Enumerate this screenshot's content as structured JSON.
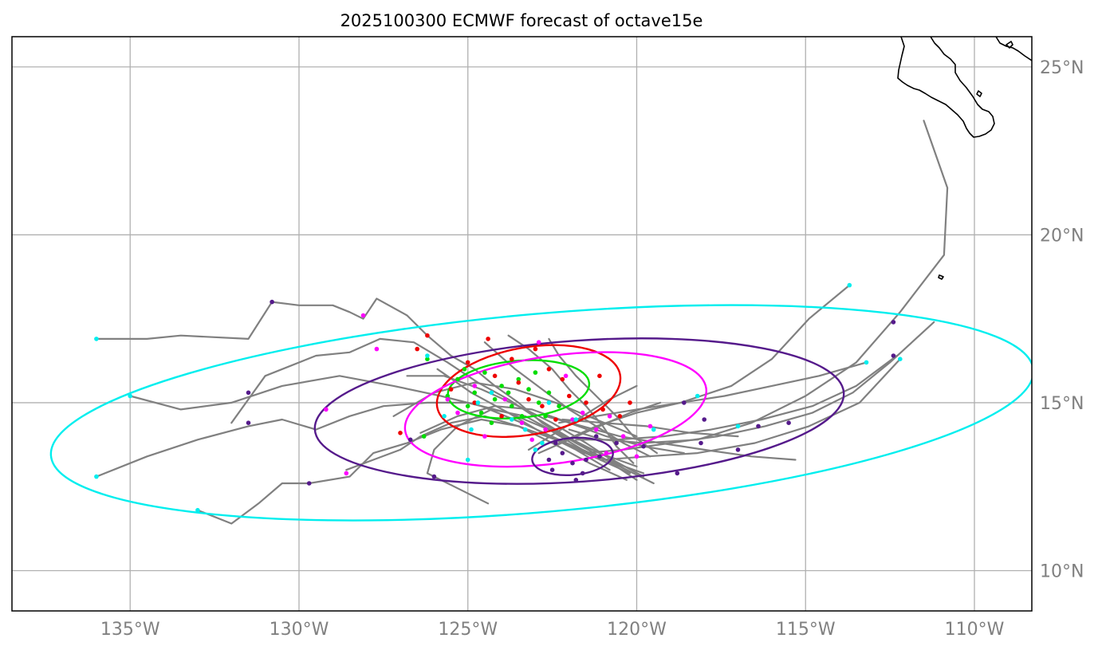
{
  "title": "2025100300 ECMWF forecast of octave15e",
  "map": {
    "extent": {
      "lon_min": -138.5,
      "lon_max": -108.3,
      "lat_min": 8.8,
      "lat_max": 25.9
    },
    "lon_ticks": [
      {
        "lon": -135,
        "label": "135°W"
      },
      {
        "lon": -130,
        "label": "130°W"
      },
      {
        "lon": -125,
        "label": "125°W"
      },
      {
        "lon": -120,
        "label": "120°W"
      },
      {
        "lon": -115,
        "label": "115°W"
      },
      {
        "lon": -110,
        "label": "110°W"
      }
    ],
    "lat_ticks": [
      {
        "lat": 10,
        "label": "10°N"
      },
      {
        "lat": 15,
        "label": "15°N"
      },
      {
        "lat": 20,
        "label": "20°N"
      },
      {
        "lat": 25,
        "label": "25°N"
      }
    ]
  },
  "colors": {
    "track": "#808080",
    "day1": "#00dd00",
    "day2": "#ee0000",
    "day3": "#ff00ff",
    "day4": "#551a8b",
    "day5": "#00eeee",
    "grid": "#b0b0b0",
    "coast": "#000000"
  },
  "uncertainty_ellipses": [
    {
      "name": "day1-ellipse",
      "color_key": "day1",
      "center": [
        -123.5,
        15.4
      ],
      "semi_lon": 2.1,
      "semi_lat": 0.85,
      "angle": -5
    },
    {
      "name": "day2-ellipse",
      "color_key": "day2",
      "center": [
        -123.2,
        15.35
      ],
      "semi_lon": 2.75,
      "semi_lat": 1.3,
      "angle": -10
    },
    {
      "name": "day3-ellipse",
      "color_key": "day3",
      "center": [
        -122.4,
        14.8
      ],
      "semi_lon": 4.5,
      "semi_lat": 1.6,
      "angle": -8
    },
    {
      "name": "day4-ellipse",
      "color_key": "day4",
      "center": [
        -121.7,
        14.75
      ],
      "semi_lon": 7.85,
      "semi_lat": 2.1,
      "angle": -4
    },
    {
      "name": "day5-ellipse",
      "color_key": "day5",
      "center": [
        -122.8,
        14.7
      ],
      "semi_lon": 14.6,
      "semi_lat": 2.95,
      "angle": -5
    },
    {
      "name": "day4-inner-ellipse",
      "color_key": "day4",
      "center": [
        -121.9,
        13.4
      ],
      "semi_lon": 1.2,
      "semi_lat": 0.55,
      "angle": -5
    }
  ],
  "tracks": [
    [
      [
        -136,
        16.9
      ],
      [
        -134.5,
        16.9
      ],
      [
        -133.5,
        17.0
      ],
      [
        -131.5,
        16.9
      ],
      [
        -130.8,
        18.0
      ],
      [
        -130,
        17.9
      ],
      [
        -129,
        17.9
      ],
      [
        -128.5,
        17.7
      ],
      [
        -128.1,
        17.5
      ],
      [
        -127.7,
        18.1
      ],
      [
        -126.8,
        17.6
      ],
      [
        -126.2,
        17.0
      ],
      [
        -125.5,
        16.4
      ],
      [
        -124.8,
        16.0
      ],
      [
        -124.2,
        15.5
      ],
      [
        -123.5,
        15.0
      ],
      [
        -122.8,
        14.4
      ],
      [
        -121.8,
        13.8
      ],
      [
        -120.9,
        13.3
      ],
      [
        -120.0,
        12.7
      ]
    ],
    [
      [
        -135,
        15.2
      ],
      [
        -133.5,
        14.8
      ],
      [
        -132.0,
        15.0
      ],
      [
        -130.5,
        15.5
      ],
      [
        -128.8,
        15.8
      ],
      [
        -127.2,
        15.5
      ],
      [
        -125.8,
        15.2
      ],
      [
        -124.6,
        14.9
      ],
      [
        -123.4,
        14.4
      ],
      [
        -122.3,
        13.9
      ],
      [
        -121.2,
        13.4
      ],
      [
        -119.8,
        12.9
      ]
    ],
    [
      [
        -136,
        12.8
      ],
      [
        -134.5,
        13.4
      ],
      [
        -133,
        13.9
      ],
      [
        -131.5,
        14.3
      ],
      [
        -130.5,
        14.5
      ],
      [
        -129.5,
        14.2
      ],
      [
        -128.5,
        14.6
      ],
      [
        -127.5,
        14.9
      ],
      [
        -126.2,
        15.0
      ],
      [
        -125.0,
        15.0
      ],
      [
        -123.8,
        14.7
      ],
      [
        -122.6,
        14.2
      ],
      [
        -121.6,
        13.6
      ],
      [
        -120.5,
        13.1
      ],
      [
        -119.5,
        12.6
      ]
    ],
    [
      [
        -133,
        11.8
      ],
      [
        -132,
        11.4
      ],
      [
        -131.2,
        12.0
      ],
      [
        -130.5,
        12.6
      ],
      [
        -129.7,
        12.6
      ],
      [
        -128.5,
        12.8
      ],
      [
        -127.8,
        13.5
      ],
      [
        -126.8,
        13.8
      ],
      [
        -125.8,
        14.2
      ],
      [
        -124.6,
        14.5
      ],
      [
        -123.5,
        14.3
      ],
      [
        -122.4,
        13.9
      ],
      [
        -121.3,
        13.4
      ],
      [
        -120.2,
        12.9
      ]
    ],
    [
      [
        -132,
        14.4
      ],
      [
        -131,
        15.8
      ],
      [
        -129.5,
        16.4
      ],
      [
        -128.5,
        16.5
      ],
      [
        -127.6,
        16.9
      ],
      [
        -126.6,
        16.8
      ],
      [
        -125.6,
        16.2
      ],
      [
        -124.7,
        15.6
      ],
      [
        -123.8,
        15.1
      ],
      [
        -122.9,
        14.5
      ],
      [
        -121.9,
        13.9
      ],
      [
        -120.9,
        13.4
      ],
      [
        -119.8,
        12.8
      ]
    ],
    [
      [
        -128.6,
        13.0
      ],
      [
        -127.8,
        13.3
      ],
      [
        -127.0,
        13.6
      ],
      [
        -126.4,
        14.0
      ],
      [
        -125.5,
        14.4
      ],
      [
        -124.5,
        14.6
      ],
      [
        -123.5,
        14.3
      ],
      [
        -122.5,
        13.8
      ],
      [
        -121.4,
        13.2
      ],
      [
        -120.3,
        12.7
      ]
    ],
    [
      [
        -124.4,
        12.0
      ],
      [
        -125.4,
        12.5
      ],
      [
        -126.2,
        12.9
      ],
      [
        -126.0,
        13.6
      ],
      [
        -125.3,
        14.3
      ],
      [
        -124.3,
        14.8
      ],
      [
        -123.3,
        14.6
      ],
      [
        -122.2,
        14.0
      ],
      [
        -121.1,
        13.5
      ],
      [
        -120.0,
        13.1
      ]
    ],
    [
      [
        -111.5,
        23.4
      ],
      [
        -110.8,
        21.4
      ],
      [
        -110.9,
        19.4
      ],
      [
        -112.2,
        17.7
      ],
      [
        -113.5,
        16.2
      ],
      [
        -115.0,
        15.2
      ],
      [
        -116.6,
        14.4
      ],
      [
        -118.2,
        13.9
      ],
      [
        -119.8,
        13.8
      ],
      [
        -121.0,
        13.9
      ],
      [
        -122.0,
        14.2
      ]
    ],
    [
      [
        -113.7,
        18.5
      ],
      [
        -114.9,
        17.5
      ],
      [
        -116.0,
        16.3
      ],
      [
        -117.2,
        15.5
      ],
      [
        -118.7,
        15.0
      ],
      [
        -120.0,
        14.7
      ],
      [
        -121.2,
        14.3
      ],
      [
        -122.3,
        13.8
      ]
    ],
    [
      [
        -111.2,
        17.4
      ],
      [
        -112.5,
        16.2
      ],
      [
        -113.6,
        15.3
      ],
      [
        -114.8,
        14.7
      ],
      [
        -116.2,
        14.3
      ],
      [
        -117.6,
        14.0
      ],
      [
        -119.0,
        13.8
      ],
      [
        -120.4,
        13.6
      ],
      [
        -121.6,
        13.5
      ]
    ],
    [
      [
        -112.3,
        16.4
      ],
      [
        -113.5,
        15.5
      ],
      [
        -114.8,
        14.9
      ],
      [
        -116.3,
        14.5
      ],
      [
        -117.8,
        14.2
      ],
      [
        -119.2,
        14.0
      ],
      [
        -120.6,
        13.9
      ],
      [
        -121.8,
        13.9
      ]
    ],
    [
      [
        -113.2,
        16.2
      ],
      [
        -114.6,
        15.8
      ],
      [
        -116.0,
        15.5
      ],
      [
        -117.4,
        15.2
      ],
      [
        -118.7,
        15.0
      ],
      [
        -120.0,
        14.8
      ],
      [
        -121.2,
        14.6
      ],
      [
        -122.3,
        14.4
      ]
    ],
    [
      [
        -115.3,
        13.3
      ],
      [
        -116.6,
        13.4
      ],
      [
        -118.0,
        13.6
      ],
      [
        -119.3,
        13.8
      ],
      [
        -120.5,
        14.0
      ],
      [
        -121.6,
        14.3
      ],
      [
        -122.7,
        14.6
      ]
    ],
    [
      [
        -112.2,
        16.3
      ],
      [
        -113.4,
        15.0
      ],
      [
        -114.9,
        14.3
      ],
      [
        -116.5,
        13.8
      ],
      [
        -118.2,
        13.5
      ],
      [
        -119.7,
        13.4
      ],
      [
        -121.0,
        13.3
      ]
    ],
    [
      [
        -123.8,
        17.0
      ],
      [
        -123.2,
        16.6
      ],
      [
        -122.5,
        16.0
      ],
      [
        -122.0,
        15.4
      ],
      [
        -121.5,
        14.9
      ],
      [
        -121.0,
        14.3
      ],
      [
        -120.6,
        13.7
      ],
      [
        -120.1,
        13.2
      ]
    ],
    [
      [
        -124.5,
        16.8
      ],
      [
        -123.6,
        16.0
      ],
      [
        -122.8,
        15.4
      ],
      [
        -122.0,
        14.8
      ],
      [
        -121.2,
        14.3
      ],
      [
        -120.4,
        13.8
      ],
      [
        -119.6,
        13.4
      ]
    ],
    [
      [
        -126.4,
        14.1
      ],
      [
        -125.3,
        14.6
      ],
      [
        -124.2,
        14.9
      ],
      [
        -123.1,
        14.8
      ],
      [
        -122.0,
        14.4
      ],
      [
        -120.9,
        14.0
      ],
      [
        -119.8,
        13.7
      ],
      [
        -118.6,
        13.5
      ]
    ],
    [
      [
        -127.2,
        14.6
      ],
      [
        -126.0,
        15.3
      ],
      [
        -124.8,
        15.6
      ],
      [
        -123.6,
        15.4
      ],
      [
        -122.4,
        15.0
      ],
      [
        -121.2,
        14.5
      ],
      [
        -120.0,
        14.0
      ]
    ],
    [
      [
        -126.8,
        15.8
      ],
      [
        -125.7,
        15.8
      ],
      [
        -124.6,
        15.4
      ],
      [
        -123.5,
        14.9
      ],
      [
        -122.5,
        14.4
      ],
      [
        -121.5,
        13.8
      ],
      [
        -120.6,
        13.2
      ]
    ],
    [
      [
        -125.9,
        16.0
      ],
      [
        -124.9,
        15.3
      ],
      [
        -123.8,
        14.7
      ],
      [
        -122.8,
        14.1
      ],
      [
        -121.8,
        13.6
      ],
      [
        -120.8,
        13.0
      ]
    ],
    [
      [
        -122.6,
        16.9
      ],
      [
        -122.3,
        16.4
      ],
      [
        -121.8,
        15.8
      ],
      [
        -121.2,
        15.2
      ],
      [
        -120.6,
        14.6
      ],
      [
        -120.1,
        14.0
      ],
      [
        -119.4,
        13.5
      ]
    ],
    [
      [
        -120.0,
        15.5
      ],
      [
        -120.8,
        15.1
      ],
      [
        -121.6,
        14.6
      ],
      [
        -122.4,
        14.1
      ],
      [
        -123.2,
        13.6
      ]
    ],
    [
      [
        -119.3,
        15.0
      ],
      [
        -120.2,
        14.7
      ],
      [
        -121.1,
        14.3
      ],
      [
        -122.0,
        13.9
      ],
      [
        -122.9,
        13.5
      ]
    ],
    [
      [
        -117.0,
        14.0
      ],
      [
        -118.4,
        14.1
      ],
      [
        -119.7,
        14.3
      ],
      [
        -121.0,
        14.4
      ],
      [
        -122.2,
        14.5
      ]
    ]
  ],
  "points": {
    "day1": [
      [
        -125.3,
        15.7
      ],
      [
        -124.8,
        15.3
      ],
      [
        -124.2,
        15.1
      ],
      [
        -123.7,
        14.9
      ],
      [
        -123.2,
        15.4
      ],
      [
        -122.9,
        15.0
      ],
      [
        -124.5,
        15.9
      ],
      [
        -123.5,
        15.7
      ],
      [
        -125.0,
        14.9
      ],
      [
        -122.6,
        15.3
      ],
      [
        -124.0,
        15.5
      ],
      [
        -123.4,
        14.6
      ],
      [
        -125.6,
        15.2
      ],
      [
        -124.6,
        14.7
      ],
      [
        -122.3,
        14.9
      ],
      [
        -126.2,
        16.3
      ],
      [
        -123.0,
        15.9
      ],
      [
        -124.3,
        14.4
      ],
      [
        -126.3,
        14.0
      ],
      [
        -123.8,
        15.3
      ],
      [
        -122.7,
        14.6
      ],
      [
        -125.1,
        16.0
      ]
    ],
    "day2": [
      [
        -124.2,
        15.8
      ],
      [
        -123.2,
        15.1
      ],
      [
        -122.0,
        15.2
      ],
      [
        -121.5,
        15.0
      ],
      [
        -122.6,
        16.0
      ],
      [
        -123.7,
        16.3
      ],
      [
        -124.8,
        15.0
      ],
      [
        -125.5,
        15.4
      ],
      [
        -122.4,
        14.5
      ],
      [
        -121.0,
        14.8
      ],
      [
        -120.2,
        15.0
      ],
      [
        -123.0,
        16.6
      ],
      [
        -124.4,
        16.9
      ],
      [
        -126.2,
        17.0
      ],
      [
        -126.5,
        16.6
      ],
      [
        -127.0,
        14.1
      ],
      [
        -121.1,
        15.8
      ],
      [
        -122.8,
        14.9
      ],
      [
        -124.0,
        14.6
      ],
      [
        -123.5,
        15.6
      ],
      [
        -125.0,
        16.2
      ],
      [
        -122.2,
        15.7
      ],
      [
        -120.5,
        14.6
      ]
    ],
    "day3": [
      [
        -121.9,
        14.5
      ],
      [
        -121.2,
        14.2
      ],
      [
        -120.4,
        14.0
      ],
      [
        -120.0,
        13.4
      ],
      [
        -120.9,
        13.5
      ],
      [
        -122.7,
        14.2
      ],
      [
        -123.4,
        14.4
      ],
      [
        -124.5,
        14.0
      ],
      [
        -125.3,
        14.7
      ],
      [
        -122.9,
        16.8
      ],
      [
        -127.7,
        16.6
      ],
      [
        -128.1,
        17.6
      ],
      [
        -129.2,
        14.8
      ],
      [
        -128.6,
        12.9
      ],
      [
        -121.6,
        14.7
      ],
      [
        -123.9,
        15.1
      ],
      [
        -119.6,
        14.3
      ],
      [
        -124.8,
        15.5
      ],
      [
        -120.8,
        14.6
      ],
      [
        -122.1,
        15.8
      ],
      [
        -125.6,
        15.1
      ],
      [
        -123.1,
        13.9
      ]
    ],
    "day4": [
      [
        -121.9,
        13.2
      ],
      [
        -122.2,
        13.5
      ],
      [
        -121.5,
        13.3
      ],
      [
        -122.6,
        13.3
      ],
      [
        -121.1,
        13.4
      ],
      [
        -121.6,
        12.9
      ],
      [
        -122.5,
        13.0
      ],
      [
        -120.6,
        13.8
      ],
      [
        -119.8,
        13.7
      ],
      [
        -118.8,
        12.9
      ],
      [
        -118.1,
        13.8
      ],
      [
        -117.0,
        13.6
      ],
      [
        -116.4,
        14.3
      ],
      [
        -115.5,
        14.4
      ],
      [
        -118.0,
        14.5
      ],
      [
        -118.6,
        15.0
      ],
      [
        -112.4,
        17.4
      ],
      [
        -112.4,
        16.4
      ],
      [
        -130.8,
        18.0
      ],
      [
        -131.5,
        15.3
      ],
      [
        -131.5,
        14.4
      ],
      [
        -126.7,
        13.9
      ],
      [
        -126.0,
        12.8
      ],
      [
        -129.7,
        12.6
      ],
      [
        -121.8,
        12.7
      ],
      [
        -122.4,
        13.8
      ],
      [
        -121.2,
        14.0
      ]
    ],
    "day5": [
      [
        -136.0,
        16.9
      ],
      [
        -135.0,
        15.2
      ],
      [
        -136.0,
        12.8
      ],
      [
        -133.0,
        11.8
      ],
      [
        -113.7,
        18.5
      ],
      [
        -113.2,
        16.2
      ],
      [
        -112.2,
        16.3
      ],
      [
        -117.0,
        14.3
      ],
      [
        -118.2,
        15.2
      ],
      [
        -119.5,
        14.2
      ],
      [
        -125.0,
        13.3
      ],
      [
        -125.7,
        14.6
      ],
      [
        -123.0,
        13.6
      ],
      [
        -122.8,
        13.8
      ],
      [
        -124.3,
        15.3
      ],
      [
        -123.7,
        14.5
      ],
      [
        -124.7,
        15.0
      ],
      [
        -122.6,
        15.0
      ],
      [
        -123.3,
        14.2
      ],
      [
        -121.8,
        14.5
      ],
      [
        -124.9,
        14.2
      ],
      [
        -126.2,
        16.4
      ]
    ]
  }
}
